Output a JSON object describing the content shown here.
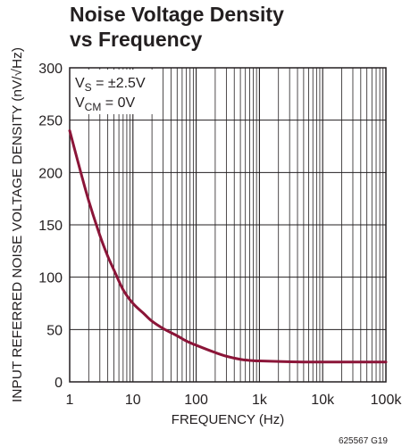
{
  "chart_data": {
    "type": "line",
    "title_lines": [
      "Noise Voltage Density",
      "vs Frequency"
    ],
    "xlabel": "FREQUENCY (Hz)",
    "ylabel": "INPUT REFERRED NOISE VOLTAGE DENSITY (nV/√Hz)",
    "x_scale": "log",
    "xlim": [
      1,
      100000
    ],
    "ylim": [
      0,
      300
    ],
    "x_ticks": [
      1,
      10,
      100,
      1000,
      10000,
      100000
    ],
    "x_tick_labels": [
      "1",
      "10",
      "100",
      "1k",
      "10k",
      "100k"
    ],
    "y_ticks": [
      0,
      50,
      100,
      150,
      200,
      250,
      300
    ],
    "y_tick_labels": [
      "0",
      "50",
      "100",
      "150",
      "200",
      "250",
      "300"
    ],
    "grid": true,
    "conditions": {
      "vs": {
        "main": "V",
        "sub": "S",
        "rest": " = ±2.5V"
      },
      "vcm": {
        "main": "V",
        "sub": "CM",
        "rest": " = 0V"
      }
    },
    "series": [
      {
        "color": "#8b1538",
        "x": [
          1,
          1.5,
          2,
          3,
          4,
          5,
          7,
          10,
          15,
          20,
          30,
          50,
          70,
          100,
          200,
          300,
          500,
          700,
          1000,
          2000,
          5000,
          10000,
          100000
        ],
        "y": [
          240,
          200,
          173,
          140,
          120,
          107,
          88,
          75,
          65,
          58,
          51,
          44,
          39,
          35,
          28,
          24.5,
          21.5,
          20.5,
          20,
          19.5,
          19,
          19,
          19
        ]
      }
    ],
    "figure_id": "625567 G19"
  }
}
